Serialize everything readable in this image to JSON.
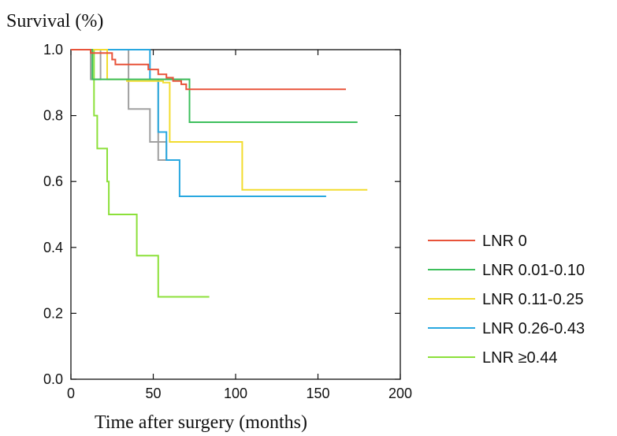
{
  "chart_data": {
    "type": "line",
    "step": true,
    "title": "",
    "ylabel": "Survival (%)",
    "xlabel": "Time after surgery (months)",
    "xlim": [
      0,
      200
    ],
    "ylim": [
      0.0,
      1.0
    ],
    "xticks": [
      "0",
      "50",
      "100",
      "150",
      "200"
    ],
    "yticks": [
      "0.0",
      "0.2",
      "0.4",
      "0.6",
      "0.8",
      "1.0"
    ],
    "grid": false,
    "legend_position": "right",
    "series": [
      {
        "name": "LNR 0",
        "color": "#e8533a",
        "points": [
          [
            0,
            1.0
          ],
          [
            12,
            1.0
          ],
          [
            12,
            0.99
          ],
          [
            25,
            0.99
          ],
          [
            25,
            0.97
          ],
          [
            27,
            0.97
          ],
          [
            27,
            0.955
          ],
          [
            47,
            0.955
          ],
          [
            47,
            0.94
          ],
          [
            53,
            0.94
          ],
          [
            53,
            0.925
          ],
          [
            58,
            0.925
          ],
          [
            58,
            0.915
          ],
          [
            62,
            0.915
          ],
          [
            62,
            0.905
          ],
          [
            67,
            0.905
          ],
          [
            67,
            0.895
          ],
          [
            70,
            0.895
          ],
          [
            70,
            0.88
          ],
          [
            167,
            0.88
          ]
        ]
      },
      {
        "name": "LNR 0.01-0.10",
        "color": "#3dbf5c",
        "points": [
          [
            0,
            1.0
          ],
          [
            13,
            1.0
          ],
          [
            13,
            0.91
          ],
          [
            72,
            0.91
          ],
          [
            72,
            0.78
          ],
          [
            174,
            0.78
          ]
        ]
      },
      {
        "name": "LNR 0.11-0.25",
        "color": "#f2dc2e",
        "points": [
          [
            0,
            1.0
          ],
          [
            22,
            1.0
          ],
          [
            22,
            0.91
          ],
          [
            34,
            0.91
          ],
          [
            34,
            0.905
          ],
          [
            56,
            0.905
          ],
          [
            56,
            0.9
          ],
          [
            60,
            0.9
          ],
          [
            60,
            0.72
          ],
          [
            104,
            0.72
          ],
          [
            104,
            0.575
          ],
          [
            180,
            0.575
          ]
        ]
      },
      {
        "name": "LNR 0.26-0.43",
        "color": "#29a8e0",
        "points": [
          [
            0,
            1.0
          ],
          [
            48,
            1.0
          ],
          [
            48,
            0.91
          ],
          [
            53,
            0.91
          ],
          [
            53,
            0.75
          ],
          [
            58,
            0.75
          ],
          [
            58,
            0.665
          ],
          [
            66,
            0.665
          ],
          [
            66,
            0.555
          ],
          [
            155,
            0.555
          ]
        ]
      },
      {
        "name": "LNR ≥0.44",
        "color": "#8ce03a",
        "points": [
          [
            0,
            1.0
          ],
          [
            14,
            1.0
          ],
          [
            14,
            0.8
          ],
          [
            16,
            0.8
          ],
          [
            16,
            0.7
          ],
          [
            22,
            0.7
          ],
          [
            22,
            0.6
          ],
          [
            23,
            0.6
          ],
          [
            23,
            0.5
          ],
          [
            40,
            0.5
          ],
          [
            40,
            0.375
          ],
          [
            53,
            0.375
          ],
          [
            53,
            0.25
          ],
          [
            84,
            0.25
          ]
        ]
      },
      {
        "name": "",
        "color": "#a0a0a0",
        "points": [
          [
            12,
            1.0
          ],
          [
            12,
            0.91
          ],
          [
            18,
            0.91
          ],
          [
            18,
            1.0
          ],
          [
            35,
            1.0
          ],
          [
            35,
            0.82
          ],
          [
            48,
            0.82
          ],
          [
            48,
            0.72
          ],
          [
            58,
            0.72
          ],
          [
            58,
            0.665
          ],
          [
            53,
            0.665
          ],
          [
            53,
            0.91
          ],
          [
            72,
            0.91
          ],
          [
            72,
            0.78
          ]
        ]
      }
    ]
  }
}
